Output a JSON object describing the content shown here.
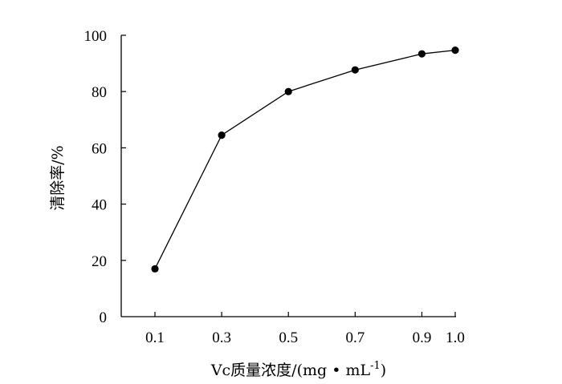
{
  "chart_data": {
    "type": "line",
    "x": [
      "0.1",
      "0.3",
      "0.5",
      "0.7",
      "0.9",
      "1.0"
    ],
    "series": [
      {
        "values": [
          17,
          64.5,
          80,
          87.7,
          93.4,
          94.7
        ]
      }
    ],
    "xlabel": "Vc质量浓度/(mg • mL",
    "xlabel_sup": "-1",
    "xlabel_end": ")",
    "ylabel": "清除率/%",
    "yticks": [
      "0",
      "20",
      "40",
      "60",
      "80",
      "100"
    ],
    "ylim": [
      0,
      100
    ],
    "grid": false,
    "series_color": "#000000",
    "marker": "filled-circle"
  }
}
